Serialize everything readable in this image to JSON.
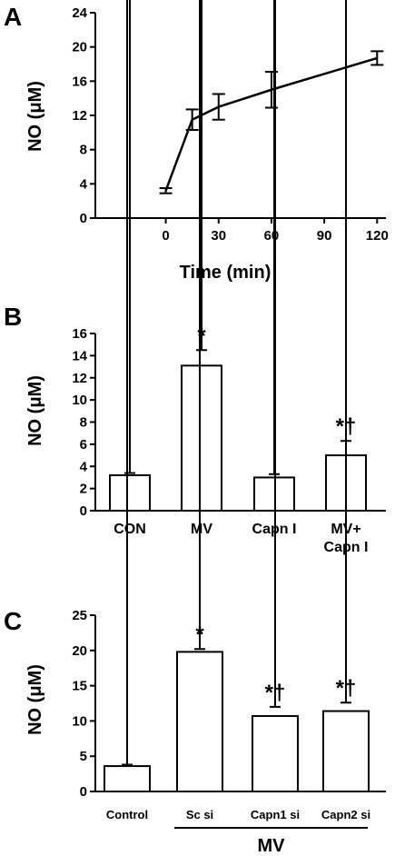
{
  "chart_data": [
    {
      "panel": "A",
      "type": "line",
      "ylabel": "NO (μM)",
      "xlabel": "Time (min)",
      "x": [
        0,
        15,
        30,
        60,
        120
      ],
      "y": [
        3.2,
        11.5,
        13.0,
        15.0,
        18.7
      ],
      "err": [
        0.3,
        1.2,
        1.5,
        2.1,
        0.8
      ],
      "xticks": [
        "0",
        "30",
        "60",
        "90",
        "120"
      ],
      "yticks": [
        "0",
        "4",
        "8",
        "12",
        "16",
        "20",
        "24"
      ],
      "ylim": [
        0,
        24
      ]
    },
    {
      "panel": "B",
      "type": "bar",
      "ylabel": "NO (μM)",
      "categories": [
        "CON",
        "MV",
        "Capn I",
        "MV+\nCapn I"
      ],
      "values": [
        3.2,
        13.1,
        3.0,
        5.0
      ],
      "err": [
        0.2,
        1.4,
        0.3,
        1.3
      ],
      "sig": [
        "",
        "*",
        "",
        "*†"
      ],
      "yticks": [
        "0",
        "2",
        "4",
        "6",
        "8",
        "10",
        "12",
        "14",
        "16"
      ],
      "ylim": [
        0,
        16
      ]
    },
    {
      "panel": "C",
      "type": "bar",
      "ylabel": "NO (μM)",
      "categories": [
        "Control",
        "Sc si",
        "Capn1 si",
        "Capn2 si"
      ],
      "values": [
        3.6,
        19.8,
        10.7,
        11.4
      ],
      "err": [
        0.2,
        0.4,
        1.3,
        1.2
      ],
      "sig": [
        "",
        "*",
        "*†",
        "*†"
      ],
      "group_label": "MV",
      "yticks": [
        "0",
        "5",
        "10",
        "15",
        "20",
        "25"
      ],
      "ylim": [
        0,
        25
      ]
    }
  ]
}
